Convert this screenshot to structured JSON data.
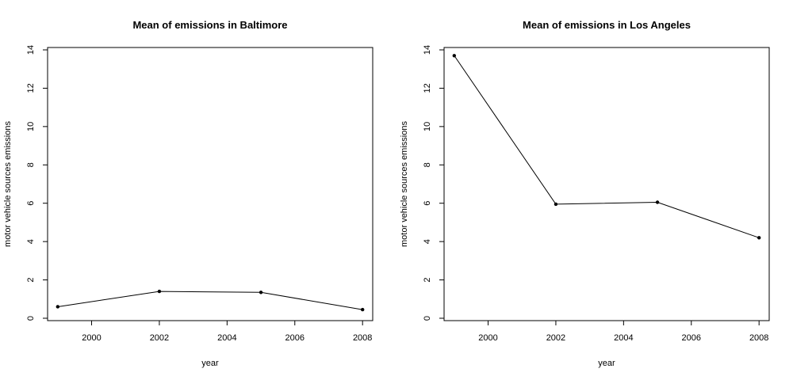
{
  "chart_data": [
    {
      "type": "line",
      "title": "Mean of emissions in Baltimore",
      "xlabel": "year",
      "ylabel": "motor vehicle sources emissions",
      "x": [
        1999,
        2002,
        2005,
        2008
      ],
      "values": [
        0.6,
        1.4,
        1.35,
        0.45
      ],
      "xlim": [
        1998.7,
        2008.3
      ],
      "ylim": [
        0,
        14
      ],
      "x_ticks": [
        "2000",
        "2002",
        "2004",
        "2006",
        "2008"
      ],
      "y_ticks": [
        "0",
        "2",
        "4",
        "6",
        "8",
        "10",
        "12",
        "14"
      ],
      "grid": false
    },
    {
      "type": "line",
      "title": "Mean of emissions in Los Angeles",
      "xlabel": "year",
      "ylabel": "motor vehicle sources emissions",
      "x": [
        1999,
        2002,
        2005,
        2008
      ],
      "values": [
        13.7,
        5.95,
        6.05,
        4.2
      ],
      "xlim": [
        1998.7,
        2008.3
      ],
      "ylim": [
        0,
        14
      ],
      "x_ticks": [
        "2000",
        "2002",
        "2004",
        "2006",
        "2008"
      ],
      "y_ticks": [
        "0",
        "2",
        "4",
        "6",
        "8",
        "10",
        "12",
        "14"
      ],
      "grid": false
    }
  ]
}
